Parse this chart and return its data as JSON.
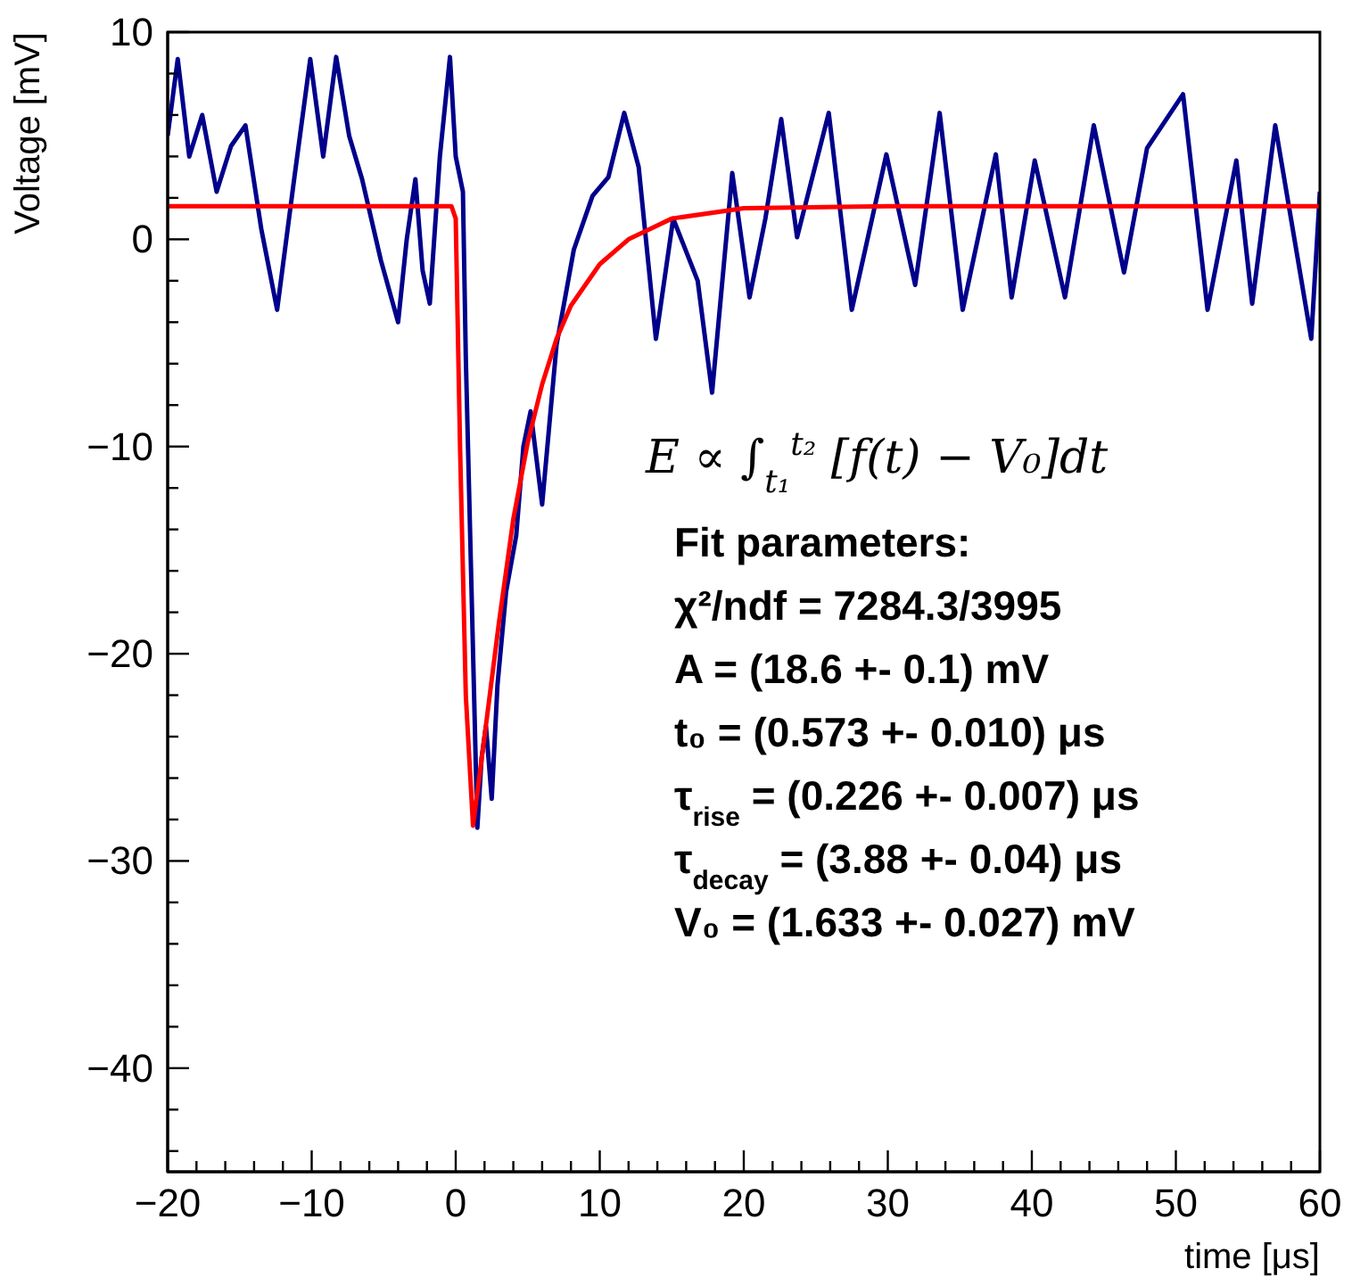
{
  "chart_data": {
    "type": "line",
    "xlabel": "time [μs]",
    "ylabel": "Voltage [mV]",
    "xlim": [
      -20,
      60
    ],
    "ylim": [
      -45,
      10
    ],
    "xticks": [
      -20,
      -10,
      0,
      10,
      20,
      30,
      40,
      50,
      60
    ],
    "yticks": [
      -40,
      -30,
      -20,
      -10,
      0,
      10
    ],
    "series": [
      {
        "type": "line",
        "color": "#00008b",
        "x": [
          -20,
          -19.3,
          -18.5,
          -17.6,
          -16.6,
          -15.6,
          -14.6,
          -13.5,
          -12.4,
          -11.2,
          -10.1,
          -9.2,
          -8.3,
          -7.4,
          -6.5,
          -5.2,
          -4,
          -3.4,
          -2.8,
          -2.3,
          -1.8,
          -1.1,
          -0.4,
          0,
          0.5,
          0.7,
          1.1,
          1.5,
          1.8,
          2.1,
          2.5,
          2.9,
          3.5,
          4.2,
          4.7,
          5.2,
          6,
          7,
          8.2,
          9.5,
          10.6,
          11.7,
          12.7,
          13.9,
          15.1,
          16.8,
          17.8,
          19.2,
          20.4,
          21.5,
          22.6,
          23.7,
          25.9,
          27.5,
          29.9,
          31.9,
          33.6,
          35.2,
          37.5,
          38.6,
          40.2,
          42.3,
          44.3,
          46.4,
          48,
          50.5,
          52.2,
          54.2,
          55.3,
          56.9,
          59.4,
          60
        ],
        "values": [
          5,
          8.7,
          4,
          6,
          2.3,
          4.5,
          5.5,
          0.5,
          -3.4,
          3,
          8.7,
          4,
          8.8,
          5,
          2.9,
          -1,
          -4,
          0,
          2.9,
          -1.5,
          -3.1,
          4,
          8.8,
          4,
          2.3,
          -5.7,
          -17,
          -28.4,
          -25,
          -23.5,
          -27,
          -21.5,
          -17,
          -14.3,
          -10,
          -8.3,
          -12.8,
          -5.1,
          -0.5,
          2.1,
          3,
          6.1,
          3.5,
          -4.8,
          1,
          -2,
          -7.4,
          3.2,
          -2.8,
          1,
          5.8,
          0.1,
          6.1,
          -3.4,
          4.1,
          -2.2,
          6.1,
          -3.4,
          4.1,
          -2.8,
          3.8,
          -2.8,
          5.5,
          -1.6,
          4.4,
          7,
          -3.4,
          3.8,
          -3.1,
          5.5,
          -4.8,
          2.3
        ]
      },
      {
        "type": "line",
        "color": "#ff0000",
        "x": [
          -20,
          -0.3,
          0,
          0.3,
          0.7,
          1.2,
          2,
          3,
          4,
          5,
          6,
          7,
          8,
          10,
          12,
          15,
          20,
          30,
          60
        ],
        "values": [
          1.6,
          1.6,
          1,
          -10,
          -22,
          -28.3,
          -24,
          -18.5,
          -13.5,
          -9.8,
          -7,
          -4.8,
          -3.2,
          -1.2,
          0,
          1,
          1.5,
          1.6,
          1.6
        ]
      }
    ],
    "annotations": [
      "E ∝ ∫$_{t₁}$$^{t₂}$ [f(t) − V₀]dt",
      "Fit parameters:",
      "χ²/ndf = 7284.3/3995",
      "A = (18.6 +- 0.1) mV",
      "t₀ = (0.573 +- 0.010) μs",
      "τ$_{rise}$ = (0.226 +- 0.007) μs",
      "τ$_{decay}$ = (3.88 +- 0.04) μs",
      "V₀ = (1.633 +- 0.027) mV"
    ]
  }
}
